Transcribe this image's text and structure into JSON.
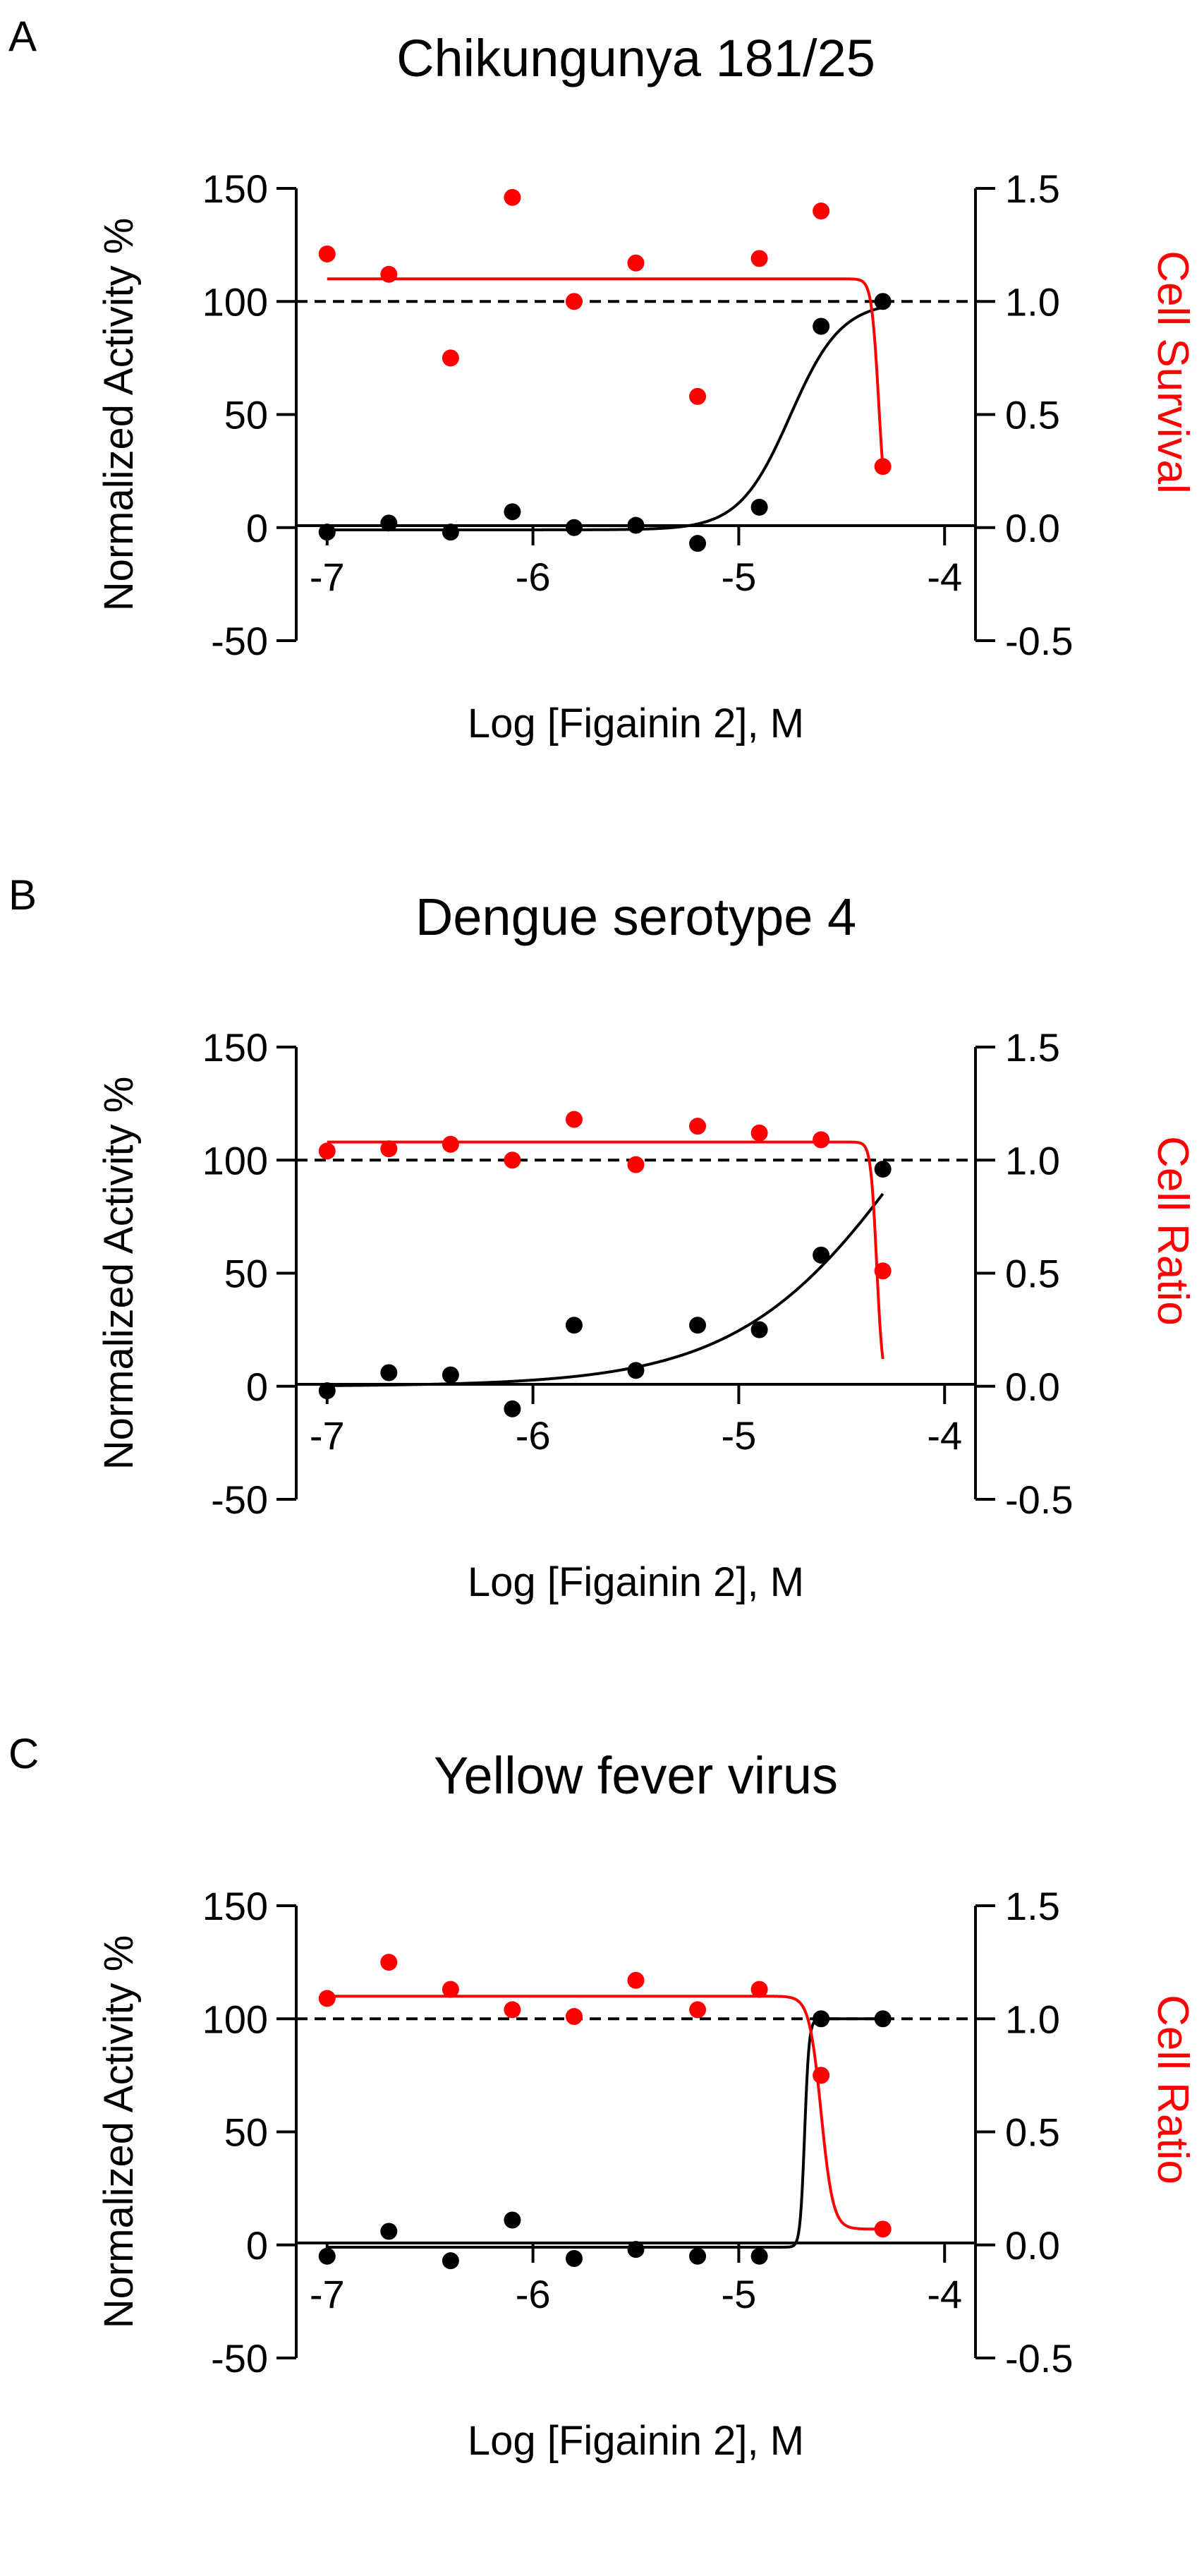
{
  "chart_data": [
    {
      "type": "scatter",
      "panel_label": "A",
      "title": "Chikungunya 181/25",
      "xlabel": "Log [Figainin 2], M",
      "ylabel": "Normalized Activity %",
      "y2label": "Cell Survival",
      "xlim": [
        -7.15,
        -3.85
      ],
      "xticks": [
        -7,
        -6,
        -5,
        -4
      ],
      "ylim": [
        -50,
        150
      ],
      "yticks": [
        -50,
        0,
        50,
        100,
        150
      ],
      "y2lim": [
        -0.5,
        1.5
      ],
      "y2ticks": [
        "-0.5",
        "0.0",
        "0.5",
        "1.0",
        "1.5"
      ],
      "reference_line": 100,
      "grid": false,
      "series": [
        {
          "axis": "left",
          "color": "#000000",
          "x": [
            -7.0,
            -6.7,
            -6.4,
            -6.1,
            -5.8,
            -5.5,
            -5.2,
            -4.9,
            -4.6,
            -4.3
          ],
          "y": [
            -2,
            2,
            -2,
            7,
            0,
            1,
            -7,
            9,
            89,
            100
          ],
          "fit": {
            "model": "sigmoid",
            "bottom": -1,
            "top": 100,
            "ec50": -4.75,
            "hill": 3.5
          }
        },
        {
          "axis": "right",
          "color": "#ff0000",
          "x": [
            -7.0,
            -6.7,
            -6.4,
            -6.1,
            -5.8,
            -5.5,
            -5.2,
            -4.9,
            -4.6,
            -4.3
          ],
          "y": [
            1.21,
            1.12,
            0.75,
            1.46,
            1.0,
            1.17,
            0.58,
            1.19,
            1.4,
            0.27
          ],
          "fit": {
            "model": "sigmoid",
            "bottom": 0.0,
            "top": 1.1,
            "ec50": -4.32,
            "hill": -25
          }
        }
      ]
    },
    {
      "type": "scatter",
      "panel_label": "B",
      "title": "Dengue serotype 4",
      "xlabel": "Log [Figainin 2], M",
      "ylabel": "Normalized Activity %",
      "y2label": "Cell Ratio",
      "xlim": [
        -7.15,
        -3.85
      ],
      "xticks": [
        -7,
        -6,
        -5,
        -4
      ],
      "ylim": [
        -50,
        150
      ],
      "yticks": [
        -50,
        0,
        50,
        100,
        150
      ],
      "y2lim": [
        -0.5,
        1.5
      ],
      "y2ticks": [
        "-0.5",
        "0.0",
        "0.5",
        "1.0",
        "1.5"
      ],
      "reference_line": 100,
      "grid": false,
      "series": [
        {
          "axis": "left",
          "color": "#000000",
          "x": [
            -7.0,
            -6.7,
            -6.4,
            -6.1,
            -5.8,
            -5.5,
            -5.2,
            -4.9,
            -4.6,
            -4.3
          ],
          "y": [
            -2,
            6,
            5,
            -10,
            27,
            7,
            27,
            25,
            58,
            96
          ],
          "fit": {
            "model": "sigmoid",
            "bottom": 0,
            "top": 220,
            "ec50": -4.1,
            "hill": 1.0
          }
        },
        {
          "axis": "right",
          "color": "#ff0000",
          "x": [
            -7.0,
            -6.7,
            -6.4,
            -6.1,
            -5.8,
            -5.5,
            -5.2,
            -4.9,
            -4.6,
            -4.3
          ],
          "y": [
            1.04,
            1.05,
            1.07,
            1.0,
            1.18,
            0.98,
            1.15,
            1.12,
            1.09,
            0.51
          ],
          "fit": {
            "model": "sigmoid",
            "bottom": 0.0,
            "top": 1.08,
            "ec50": -4.33,
            "hill": -30
          }
        }
      ]
    },
    {
      "type": "scatter",
      "panel_label": "C",
      "title": "Yellow fever virus",
      "xlabel": "Log [Figainin 2], M",
      "ylabel": "Normalized Activity %",
      "y2label": "Cell Ratio",
      "xlim": [
        -7.15,
        -3.85
      ],
      "xticks": [
        -7,
        -6,
        -5,
        -4
      ],
      "ylim": [
        -50,
        150
      ],
      "yticks": [
        -50,
        0,
        50,
        100,
        150
      ],
      "y2lim": [
        -0.5,
        1.5
      ],
      "y2ticks": [
        "-0.5",
        "0.0",
        "0.5",
        "1.0",
        "1.5"
      ],
      "reference_line": 100,
      "grid": false,
      "series": [
        {
          "axis": "left",
          "color": "#000000",
          "x": [
            -7.0,
            -6.7,
            -6.4,
            -6.1,
            -5.8,
            -5.5,
            -5.2,
            -4.9,
            -4.6,
            -4.3
          ],
          "y": [
            -5,
            6,
            -7,
            11,
            -6,
            -2,
            -5,
            -5,
            100,
            100
          ],
          "fit": {
            "model": "sigmoid",
            "bottom": -1,
            "top": 100,
            "ec50": -4.68,
            "hill": 40
          }
        },
        {
          "axis": "right",
          "color": "#ff0000",
          "x": [
            -7.0,
            -6.7,
            -6.4,
            -6.1,
            -5.8,
            -5.5,
            -5.2,
            -4.9,
            -4.6,
            -4.3
          ],
          "y": [
            1.09,
            1.25,
            1.13,
            1.04,
            1.01,
            1.17,
            1.04,
            1.13,
            0.75,
            0.07
          ],
          "fit": {
            "model": "sigmoid",
            "bottom": 0.07,
            "top": 1.1,
            "ec50": -4.6,
            "hill": -15
          }
        }
      ]
    }
  ]
}
